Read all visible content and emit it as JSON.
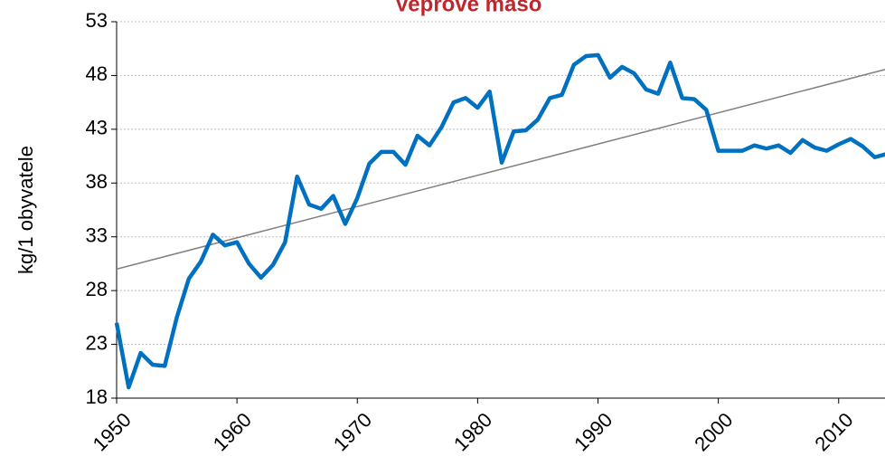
{
  "chart_data": {
    "type": "line",
    "title": "Vepřové maso",
    "y_label": "kg/1 obyvatele",
    "x": [
      1950,
      1951,
      1952,
      1953,
      1954,
      1955,
      1956,
      1957,
      1958,
      1959,
      1960,
      1961,
      1962,
      1963,
      1964,
      1965,
      1966,
      1967,
      1968,
      1969,
      1970,
      1971,
      1972,
      1973,
      1974,
      1975,
      1976,
      1977,
      1978,
      1979,
      1980,
      1981,
      1982,
      1983,
      1984,
      1985,
      1986,
      1987,
      1988,
      1989,
      1990,
      1991,
      1992,
      1993,
      1994,
      1995,
      1996,
      1997,
      1998,
      1999,
      2000,
      2001,
      2002,
      2003,
      2004,
      2005,
      2006,
      2007,
      2008,
      2009,
      2010,
      2011,
      2012,
      2013,
      2014
    ],
    "series": [
      {
        "color": "#0070c0",
        "values": [
          25.0,
          19.0,
          22.2,
          21.1,
          21.0,
          25.5,
          29.1,
          30.7,
          33.2,
          32.2,
          32.5,
          30.5,
          29.2,
          30.4,
          32.5,
          38.6,
          36.0,
          35.6,
          36.8,
          34.2,
          36.6,
          39.8,
          40.9,
          40.9,
          39.7,
          42.4,
          41.5,
          43.2,
          45.5,
          45.9,
          45.0,
          46.5,
          39.9,
          42.8,
          42.9,
          43.9,
          45.9,
          46.2,
          49.0,
          49.8,
          49.9,
          47.8,
          48.8,
          48.2,
          46.7,
          46.3,
          49.2,
          45.9,
          45.8,
          44.8,
          41.0,
          41.0,
          41.0,
          41.5,
          41.2,
          41.5,
          40.8,
          42.0,
          41.3,
          41.0,
          41.6,
          42.1,
          41.4,
          40.4,
          40.7
        ]
      }
    ],
    "trendline": {
      "color": "#808080",
      "x": [
        1950,
        2014
      ],
      "values": [
        30.0,
        48.6
      ]
    },
    "xlim": [
      1950,
      2014
    ],
    "xticks": [
      1950,
      1960,
      1970,
      1980,
      1990,
      2000,
      2010
    ],
    "ylim": [
      18,
      53
    ],
    "yticks": [
      18,
      23,
      28,
      33,
      38,
      43,
      48,
      53
    ],
    "grid": true,
    "title_color": "#c0272d"
  }
}
